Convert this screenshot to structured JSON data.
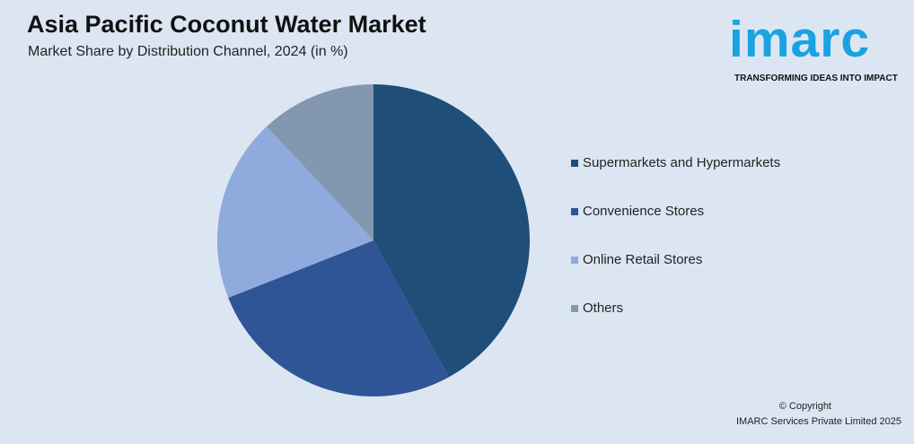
{
  "header": {
    "title": "Asia Pacific Coconut Water Market",
    "subtitle": "Market Share by Distribution Channel, 2024 (in %)"
  },
  "logo": {
    "wordmark": "imarc",
    "tagline": "TRANSFORMING IDEAS INTO IMPACT",
    "color": "#1aa3e0"
  },
  "chart_data": {
    "type": "pie",
    "title": "Asia Pacific Coconut Water Market",
    "subtitle": "Market Share by Distribution Channel, 2024 (in %)",
    "legend_position": "right",
    "slices": [
      {
        "label": "Supermarkets and Hypermarkets",
        "value": 42,
        "color": "#1f4e79"
      },
      {
        "label": "Convenience Stores",
        "value": 27,
        "color": "#2f5597"
      },
      {
        "label": "Online Retail Stores",
        "value": 19,
        "color": "#8faadc"
      },
      {
        "label": "Others",
        "value": 12,
        "color": "#8497b0"
      }
    ]
  },
  "footer": {
    "copyright": "© Copyright",
    "company": "IMARC Services Private Limited 2025"
  }
}
